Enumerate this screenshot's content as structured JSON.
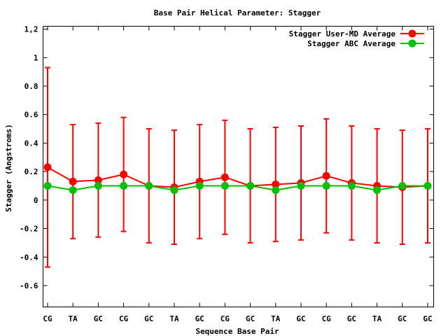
{
  "chart_data": {
    "type": "line",
    "title": "Base Pair Helical Parameter: Stagger",
    "xlabel": "Sequence Base Pair",
    "ylabel": "Stagger (Angstroms)",
    "categories": [
      "CG",
      "TA",
      "GC",
      "CG",
      "GC",
      "TA",
      "GC",
      "CG",
      "GC",
      "TA",
      "GC",
      "CG",
      "GC",
      "TA",
      "GC",
      "GC"
    ],
    "ylim": [
      -0.75,
      1.22
    ],
    "yticks": [
      -0.6,
      -0.4,
      -0.2,
      0,
      0.2,
      0.4,
      0.6,
      0.8,
      1,
      1.2
    ],
    "ytick_labels": [
      "-0.6",
      "-0.4",
      "-0.2",
      "0",
      "0.2",
      "0.4",
      "0.6",
      "0.8",
      "1",
      "1,2"
    ],
    "grid": false,
    "legend_position": "top-right",
    "series": [
      {
        "name": "Stagger User-MD Average",
        "color": "#ff0000",
        "values": [
          0.23,
          0.13,
          0.14,
          0.18,
          0.1,
          0.09,
          0.13,
          0.16,
          0.1,
          0.11,
          0.12,
          0.17,
          0.12,
          0.1,
          0.09,
          0.1
        ],
        "err_high": [
          0.93,
          0.53,
          0.54,
          0.58,
          0.5,
          0.49,
          0.53,
          0.56,
          0.5,
          0.51,
          0.52,
          0.57,
          0.52,
          0.5,
          0.49,
          0.5
        ],
        "err_low": [
          -0.47,
          -0.27,
          -0.26,
          -0.22,
          -0.3,
          -0.31,
          -0.27,
          -0.24,
          -0.3,
          -0.29,
          -0.28,
          -0.23,
          -0.28,
          -0.3,
          -0.31,
          -0.3
        ]
      },
      {
        "name": "Stagger ABC Average",
        "color": "#00c000",
        "values": [
          0.1,
          0.07,
          0.1,
          0.1,
          0.1,
          0.07,
          0.1,
          0.1,
          0.1,
          0.07,
          0.1,
          0.1,
          0.1,
          0.07,
          0.1,
          0.1
        ]
      }
    ]
  }
}
